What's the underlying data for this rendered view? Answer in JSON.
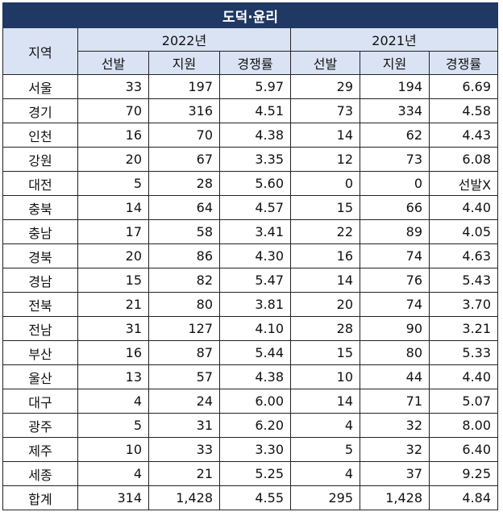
{
  "title": "도덕·윤리",
  "headers": {
    "region": "지역",
    "year_a": "2022년",
    "year_b": "2021년",
    "sub": [
      "선발",
      "지원",
      "경쟁률"
    ]
  },
  "rows": [
    {
      "region": "서울",
      "a": [
        "33",
        "197",
        "5.97"
      ],
      "b": [
        "29",
        "194",
        "6.69"
      ]
    },
    {
      "region": "경기",
      "a": [
        "70",
        "316",
        "4.51"
      ],
      "b": [
        "73",
        "334",
        "4.58"
      ]
    },
    {
      "region": "인천",
      "a": [
        "16",
        "70",
        "4.38"
      ],
      "b": [
        "14",
        "62",
        "4.43"
      ]
    },
    {
      "region": "강원",
      "a": [
        "20",
        "67",
        "3.35"
      ],
      "b": [
        "12",
        "73",
        "6.08"
      ]
    },
    {
      "region": "대전",
      "a": [
        "5",
        "28",
        "5.60"
      ],
      "b": [
        "0",
        "0",
        "선발X"
      ]
    },
    {
      "region": "충북",
      "a": [
        "14",
        "64",
        "4.57"
      ],
      "b": [
        "15",
        "66",
        "4.40"
      ]
    },
    {
      "region": "충남",
      "a": [
        "17",
        "58",
        "3.41"
      ],
      "b": [
        "22",
        "89",
        "4.05"
      ]
    },
    {
      "region": "경북",
      "a": [
        "20",
        "86",
        "4.30"
      ],
      "b": [
        "16",
        "74",
        "4.63"
      ]
    },
    {
      "region": "경남",
      "a": [
        "15",
        "82",
        "5.47"
      ],
      "b": [
        "14",
        "76",
        "5.43"
      ]
    },
    {
      "region": "전북",
      "a": [
        "21",
        "80",
        "3.81"
      ],
      "b": [
        "20",
        "74",
        "3.70"
      ]
    },
    {
      "region": "전남",
      "a": [
        "31",
        "127",
        "4.10"
      ],
      "b": [
        "28",
        "90",
        "3.21"
      ]
    },
    {
      "region": "부산",
      "a": [
        "16",
        "87",
        "5.44"
      ],
      "b": [
        "15",
        "80",
        "5.33"
      ]
    },
    {
      "region": "울산",
      "a": [
        "13",
        "57",
        "4.38"
      ],
      "b": [
        "10",
        "44",
        "4.40"
      ]
    },
    {
      "region": "대구",
      "a": [
        "4",
        "24",
        "6.00"
      ],
      "b": [
        "14",
        "71",
        "5.07"
      ]
    },
    {
      "region": "광주",
      "a": [
        "5",
        "31",
        "6.20"
      ],
      "b": [
        "4",
        "32",
        "8.00"
      ]
    },
    {
      "region": "제주",
      "a": [
        "10",
        "33",
        "3.30"
      ],
      "b": [
        "5",
        "32",
        "6.40"
      ]
    },
    {
      "region": "세종",
      "a": [
        "4",
        "21",
        "5.25"
      ],
      "b": [
        "4",
        "37",
        "9.25"
      ]
    },
    {
      "region": "합계",
      "a": [
        "314",
        "1,428",
        "4.55"
      ],
      "b": [
        "295",
        "1,428",
        "4.84"
      ]
    }
  ],
  "colors": {
    "title_bg": "#1f3864",
    "header_bg": "#dae3f3"
  }
}
